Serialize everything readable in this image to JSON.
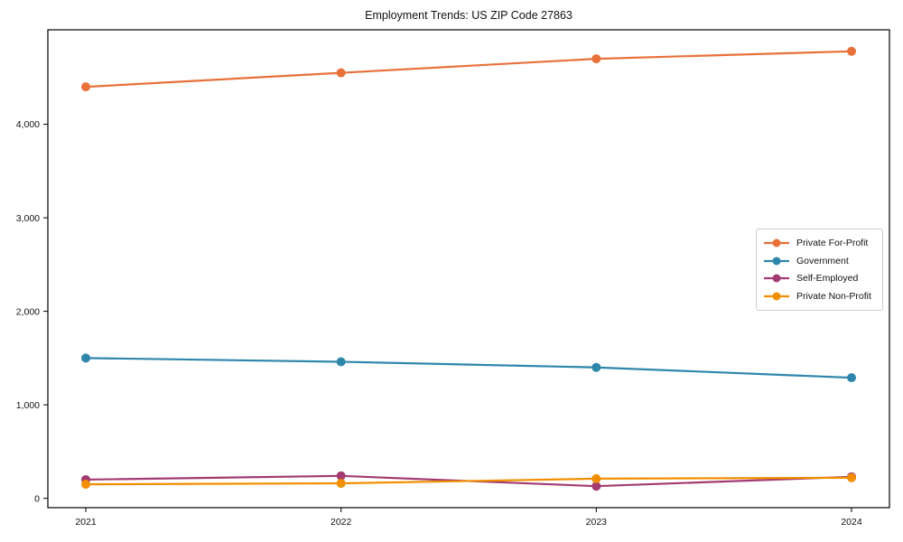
{
  "chart_data": {
    "type": "line",
    "title": "Employment Trends: US ZIP Code 27863",
    "xlabel": "",
    "ylabel": "",
    "categories": [
      "2021",
      "2022",
      "2023",
      "2024"
    ],
    "series": [
      {
        "name": "Private For-Profit",
        "color": "#E8713A",
        "values": [
          4400,
          4550,
          4700,
          4780
        ]
      },
      {
        "name": "Government",
        "color": "#2E86AB",
        "values": [
          1500,
          1460,
          1400,
          1290
        ]
      },
      {
        "name": "Self-Employed",
        "color": "#A23B72",
        "values": [
          200,
          240,
          130,
          230
        ]
      },
      {
        "name": "Private Non-Profit",
        "color": "#F18F01",
        "values": [
          150,
          160,
          210,
          220
        ]
      }
    ],
    "yticks": [
      {
        "value": 0,
        "label": "0"
      },
      {
        "value": 1000,
        "label": "1,000"
      },
      {
        "value": 2000,
        "label": "2,000"
      },
      {
        "value": 3000,
        "label": "3,000"
      },
      {
        "value": 4000,
        "label": "4,000"
      }
    ],
    "ylim": [
      -100,
      5010
    ],
    "grid": false,
    "legend_position": "center right"
  }
}
